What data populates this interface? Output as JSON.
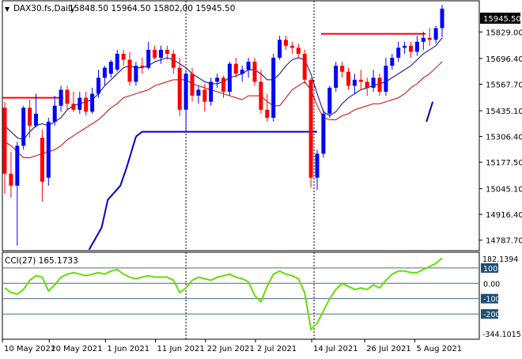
{
  "header": {
    "toggle_glyph": "▼",
    "symbol": "DAX30.fs,Daily",
    "ohlc": "15848.50 15964.50 15802,00 15945.50"
  },
  "price_axis": {
    "labels": [
      "15829.00",
      "15696.40",
      "15567.70",
      "15435.10",
      "15306.40",
      "15177.50",
      "15045.10",
      "14916.40",
      "14787.70"
    ],
    "current_price": "15945.50",
    "current_price_bg": "#000000"
  },
  "indicator": {
    "label": "CCI(27) 165.1733",
    "top_value": "182.1394",
    "bottom_value": "-344.1015",
    "levels": [
      {
        "label": "100",
        "boxed": true
      },
      {
        "label": "0.00",
        "boxed": false
      },
      {
        "label": "-100",
        "boxed": true
      },
      {
        "label": "-200",
        "boxed": true
      }
    ]
  },
  "time_axis": {
    "labels": [
      "10 May 2021",
      "20 May 2021",
      "1 Jun 2021",
      "11 Jun 2021",
      "22 Jun 2021",
      "2 Jul 2021",
      "14 Jul 2021",
      "26 Jul 2021",
      "5 Aug 2021"
    ]
  },
  "colors": {
    "up_candle": "#0000ff",
    "down_candle": "#ff0000",
    "ma_fast": "#00008b",
    "ma_slow": "#cc0000",
    "support_line": "#0000cc",
    "resistance_line": "#ff0000",
    "cci_line": "#66dd00",
    "level_line": "#4a6a8a",
    "axis_box": "#1f4e79",
    "grid_dash": "#000000"
  },
  "chart_data": {
    "type": "candlestick",
    "price_ylim": [
      14735,
      15985
    ],
    "cci_ylim": [
      -344.1015,
      182.1394
    ],
    "candles": [
      {
        "o": 15450,
        "h": 15480,
        "l": 15020,
        "c": 15120
      },
      {
        "o": 15120,
        "h": 15230,
        "l": 15000,
        "c": 15060
      },
      {
        "o": 15060,
        "h": 15280,
        "l": 14760,
        "c": 15260
      },
      {
        "o": 15260,
        "h": 15460,
        "l": 15240,
        "c": 15450
      },
      {
        "o": 15450,
        "h": 15490,
        "l": 15300,
        "c": 15360
      },
      {
        "o": 15360,
        "h": 15520,
        "l": 15350,
        "c": 15420
      },
      {
        "o": 15300,
        "h": 15340,
        "l": 14980,
        "c": 15080
      },
      {
        "o": 15100,
        "h": 15400,
        "l": 15060,
        "c": 15380
      },
      {
        "o": 15380,
        "h": 15510,
        "l": 15360,
        "c": 15460
      },
      {
        "o": 15460,
        "h": 15560,
        "l": 15430,
        "c": 15540
      },
      {
        "o": 15540,
        "h": 15560,
        "l": 15440,
        "c": 15470
      },
      {
        "o": 15470,
        "h": 15530,
        "l": 15430,
        "c": 15440
      },
      {
        "o": 15440,
        "h": 15530,
        "l": 15420,
        "c": 15500
      },
      {
        "o": 15500,
        "h": 15530,
        "l": 15410,
        "c": 15430
      },
      {
        "o": 15430,
        "h": 15550,
        "l": 15420,
        "c": 15520
      },
      {
        "o": 15520,
        "h": 15640,
        "l": 15500,
        "c": 15600
      },
      {
        "o": 15600,
        "h": 15660,
        "l": 15560,
        "c": 15650
      },
      {
        "o": 15620,
        "h": 15690,
        "l": 15600,
        "c": 15680
      },
      {
        "o": 15640,
        "h": 15740,
        "l": 15630,
        "c": 15720
      },
      {
        "o": 15720,
        "h": 15740,
        "l": 15660,
        "c": 15690
      },
      {
        "o": 15690,
        "h": 15730,
        "l": 15560,
        "c": 15580
      },
      {
        "o": 15580,
        "h": 15680,
        "l": 15560,
        "c": 15660
      },
      {
        "o": 15660,
        "h": 15700,
        "l": 15620,
        "c": 15650
      },
      {
        "o": 15650,
        "h": 15780,
        "l": 15640,
        "c": 15740
      },
      {
        "o": 15740,
        "h": 15760,
        "l": 15690,
        "c": 15700
      },
      {
        "o": 15700,
        "h": 15760,
        "l": 15670,
        "c": 15740
      },
      {
        "o": 15740,
        "h": 15760,
        "l": 15690,
        "c": 15720
      },
      {
        "o": 15720,
        "h": 15740,
        "l": 15620,
        "c": 15650
      },
      {
        "o": 15650,
        "h": 15700,
        "l": 15410,
        "c": 15440
      },
      {
        "o": 15440,
        "h": 15640,
        "l": 15330,
        "c": 15620
      },
      {
        "o": 15620,
        "h": 15650,
        "l": 15480,
        "c": 15510
      },
      {
        "o": 15510,
        "h": 15560,
        "l": 15470,
        "c": 15540
      },
      {
        "o": 15540,
        "h": 15570,
        "l": 15430,
        "c": 15480
      },
      {
        "o": 15480,
        "h": 15600,
        "l": 15460,
        "c": 15580
      },
      {
        "o": 15580,
        "h": 15620,
        "l": 15550,
        "c": 15600
      },
      {
        "o": 15600,
        "h": 15610,
        "l": 15500,
        "c": 15530
      },
      {
        "o": 15530,
        "h": 15680,
        "l": 15510,
        "c": 15670
      },
      {
        "o": 15670,
        "h": 15700,
        "l": 15600,
        "c": 15620
      },
      {
        "o": 15620,
        "h": 15660,
        "l": 15580,
        "c": 15640
      },
      {
        "o": 15640,
        "h": 15700,
        "l": 15600,
        "c": 15680
      },
      {
        "o": 15680,
        "h": 15700,
        "l": 15560,
        "c": 15580
      },
      {
        "o": 15580,
        "h": 15640,
        "l": 15420,
        "c": 15440
      },
      {
        "o": 15440,
        "h": 15520,
        "l": 15380,
        "c": 15400
      },
      {
        "o": 15400,
        "h": 15720,
        "l": 15380,
        "c": 15700
      },
      {
        "o": 15700,
        "h": 15810,
        "l": 15690,
        "c": 15790
      },
      {
        "o": 15790,
        "h": 15810,
        "l": 15740,
        "c": 15760
      },
      {
        "o": 15760,
        "h": 15780,
        "l": 15720,
        "c": 15750
      },
      {
        "o": 15750,
        "h": 15770,
        "l": 15700,
        "c": 15720
      },
      {
        "o": 15720,
        "h": 15740,
        "l": 15570,
        "c": 15590
      },
      {
        "o": 15590,
        "h": 15600,
        "l": 15050,
        "c": 15100
      },
      {
        "o": 15100,
        "h": 15240,
        "l": 15040,
        "c": 15220
      },
      {
        "o": 15220,
        "h": 15440,
        "l": 15200,
        "c": 15420
      },
      {
        "o": 15420,
        "h": 15560,
        "l": 15400,
        "c": 15550
      },
      {
        "o": 15550,
        "h": 15680,
        "l": 15530,
        "c": 15660
      },
      {
        "o": 15660,
        "h": 15680,
        "l": 15600,
        "c": 15630
      },
      {
        "o": 15630,
        "h": 15650,
        "l": 15540,
        "c": 15560
      },
      {
        "o": 15560,
        "h": 15620,
        "l": 15520,
        "c": 15590
      },
      {
        "o": 15590,
        "h": 15640,
        "l": 15540,
        "c": 15580
      },
      {
        "o": 15580,
        "h": 15600,
        "l": 15510,
        "c": 15550
      },
      {
        "o": 15550,
        "h": 15640,
        "l": 15530,
        "c": 15600
      },
      {
        "o": 15600,
        "h": 15620,
        "l": 15510,
        "c": 15530
      },
      {
        "o": 15530,
        "h": 15700,
        "l": 15510,
        "c": 15660
      },
      {
        "o": 15660,
        "h": 15720,
        "l": 15640,
        "c": 15700
      },
      {
        "o": 15700,
        "h": 15780,
        "l": 15680,
        "c": 15750
      },
      {
        "o": 15750,
        "h": 15780,
        "l": 15720,
        "c": 15760
      },
      {
        "o": 15760,
        "h": 15780,
        "l": 15700,
        "c": 15730
      },
      {
        "o": 15730,
        "h": 15810,
        "l": 15710,
        "c": 15780
      },
      {
        "o": 15780,
        "h": 15830,
        "l": 15740,
        "c": 15800
      },
      {
        "o": 15800,
        "h": 15850,
        "l": 15760,
        "c": 15790
      },
      {
        "o": 15790,
        "h": 15860,
        "l": 15770,
        "c": 15848
      },
      {
        "o": 15848.5,
        "h": 15964.5,
        "l": 15802,
        "c": 15945.5
      }
    ],
    "ma_fast": [
      15360,
      15330,
      15300,
      15290,
      15330,
      15360,
      15370,
      15360,
      15380,
      15400,
      15440,
      15460,
      15470,
      15480,
      15490,
      15520,
      15560,
      15590,
      15620,
      15650,
      15660,
      15650,
      15650,
      15660,
      15680,
      15690,
      15700,
      15690,
      15670,
      15650,
      15620,
      15600,
      15580,
      15570,
      15570,
      15580,
      15600,
      15610,
      15620,
      15640,
      15640,
      15620,
      15590,
      15590,
      15620,
      15660,
      15690,
      15700,
      15690,
      15620,
      15520,
      15430,
      15410,
      15430,
      15470,
      15500,
      15520,
      15540,
      15550,
      15560,
      15570,
      15580,
      15600,
      15620,
      15640,
      15660,
      15690,
      15720,
      15740,
      15760,
      15800
    ],
    "ma_slow": [
      15280,
      15260,
      15230,
      15200,
      15200,
      15210,
      15220,
      15230,
      15240,
      15260,
      15290,
      15310,
      15330,
      15350,
      15370,
      15390,
      15420,
      15450,
      15470,
      15500,
      15510,
      15520,
      15530,
      15540,
      15560,
      15570,
      15580,
      15590,
      15590,
      15590,
      15570,
      15560,
      15550,
      15540,
      15530,
      15520,
      15510,
      15500,
      15490,
      15510,
      15510,
      15510,
      15480,
      15460,
      15460,
      15500,
      15540,
      15560,
      15580,
      15540,
      15460,
      15400,
      15390,
      15390,
      15410,
      15420,
      15440,
      15450,
      15460,
      15470,
      15470,
      15480,
      15490,
      15500,
      15520,
      15550,
      15570,
      15600,
      15620,
      15650,
      15680
    ],
    "support_line": [
      {
        "i": 21,
        "v": 15306
      },
      {
        "i": 22,
        "v": 15330
      },
      {
        "i": 50,
        "v": 15330
      }
    ],
    "support_ramp": [
      {
        "i": 13.5,
        "v": 14740
      },
      {
        "i": 15.5,
        "v": 14850
      },
      {
        "i": 16.5,
        "v": 14990
      },
      {
        "i": 18.5,
        "v": 15060
      },
      {
        "i": 19.5,
        "v": 15150
      },
      {
        "i": 21,
        "v": 15306
      }
    ],
    "support_tail": [
      {
        "i": 67.5,
        "v": 15380
      },
      {
        "i": 68.5,
        "v": 15480
      }
    ],
    "resistance_lines": [
      {
        "from": 0,
        "to": 9,
        "v": 15500
      },
      {
        "from": 51,
        "to": 67,
        "v": 15820
      }
    ],
    "cci_values": [
      -30,
      -60,
      -70,
      -40,
      20,
      50,
      40,
      -50,
      -10,
      40,
      60,
      70,
      60,
      50,
      60,
      70,
      60,
      80,
      90,
      60,
      40,
      30,
      40,
      50,
      40,
      40,
      40,
      20,
      -60,
      -30,
      20,
      40,
      30,
      20,
      40,
      50,
      60,
      40,
      30,
      10,
      -80,
      -120,
      -20,
      60,
      80,
      60,
      50,
      30,
      -60,
      -300,
      -260,
      -180,
      -100,
      -40,
      0,
      -20,
      -40,
      -30,
      -40,
      -10,
      -30,
      20,
      60,
      80,
      80,
      70,
      70,
      90,
      110,
      130,
      165
    ]
  }
}
